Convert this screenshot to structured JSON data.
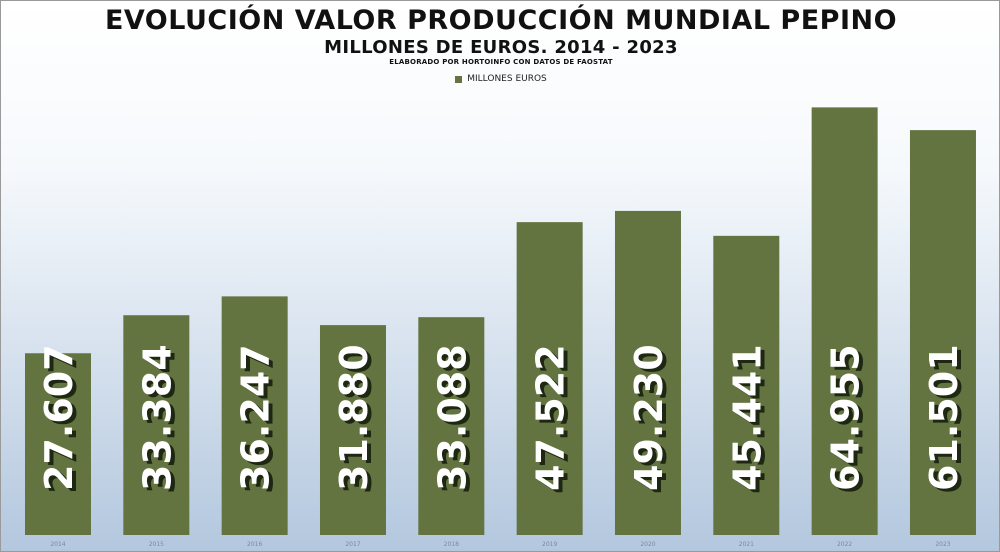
{
  "colors": {
    "bar": "#637440",
    "value_text": "#ffffff"
  },
  "chart_data": {
    "type": "bar",
    "title": "EVOLUCIÓN VALOR PRODUCCIÓN MUNDIAL PEPINO",
    "subtitle": "MILLONES DE EUROS. 2014 - 2023",
    "source_note": "ELABORADO POR HORTOINFO CON DATOS DE FAOSTAT",
    "legend": "top-center",
    "categories": [
      "2014",
      "2015",
      "2016",
      "2017",
      "2018",
      "2019",
      "2020",
      "2021",
      "2022",
      "2023"
    ],
    "series": [
      {
        "name": "MILLONES EUROS",
        "values": [
          27607,
          33384,
          36247,
          31880,
          33088,
          47522,
          49230,
          45441,
          64955,
          61501
        ],
        "labels": [
          "27.607",
          "33.384",
          "36.247",
          "31.880",
          "33.088",
          "47.522",
          "49.230",
          "45.441",
          "64.955",
          "61.501"
        ]
      }
    ],
    "ylim": [
      0,
      72000
    ],
    "grid": false
  }
}
